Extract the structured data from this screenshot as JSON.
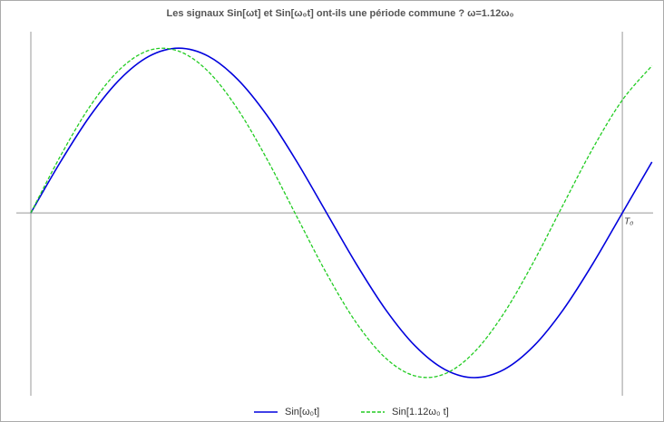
{
  "chart_data": {
    "type": "line",
    "title": "Les signaux Sin[ωt] et Sin[ω₀t] ont-ils une période commune ?  ω=1.12ω₀",
    "x": [
      0,
      0.05,
      0.1,
      0.15,
      0.2,
      0.25,
      0.3,
      0.35,
      0.4,
      0.45,
      0.5,
      0.55,
      0.6,
      0.65,
      0.7,
      0.75,
      0.8,
      0.85,
      0.9,
      0.95,
      1.0,
      1.05
    ],
    "series": [
      {
        "name": "Sin[ω₀t]",
        "color": "#0000dd",
        "dashed": false,
        "values": [
          0,
          0.309,
          0.588,
          0.809,
          0.951,
          1,
          0.951,
          0.809,
          0.588,
          0.309,
          0,
          -0.309,
          -0.588,
          -0.809,
          -0.951,
          -1,
          -0.951,
          -0.809,
          -0.588,
          -0.309,
          0,
          0.309
        ]
      },
      {
        "name": "Sin[1.12ω₀ t]",
        "color": "#22cc22",
        "dashed": true,
        "values": [
          0,
          0.345,
          0.647,
          0.87,
          0.987,
          0.982,
          0.858,
          0.628,
          0.321,
          -0.025,
          -0.368,
          -0.666,
          -0.882,
          -0.99,
          -0.977,
          -0.844,
          -0.608,
          -0.297,
          0.05,
          0.391,
          0.685,
          0.893
        ]
      }
    ],
    "xlim": [
      0,
      1.052
    ],
    "ylim": [
      -1.11,
      1.1
    ],
    "xticks": [
      {
        "value": 1,
        "label": "T₀"
      }
    ]
  }
}
